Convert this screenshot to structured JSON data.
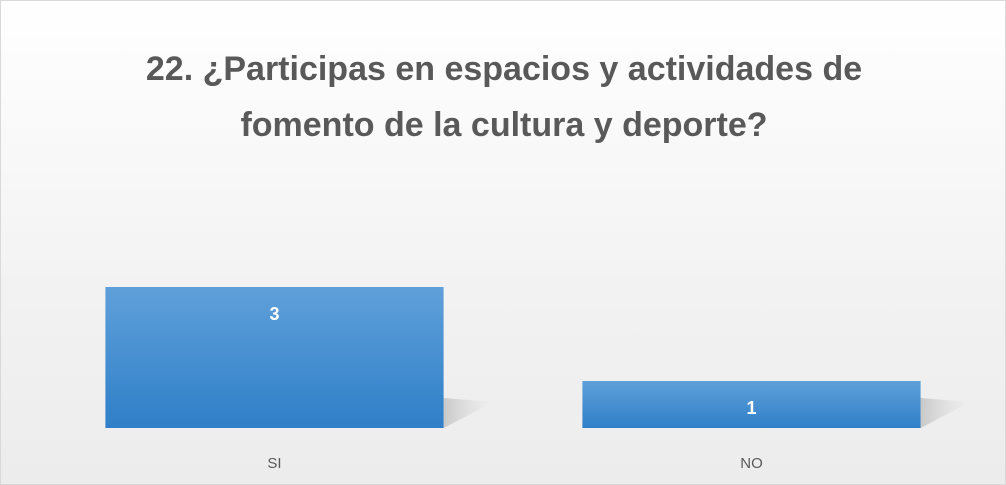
{
  "chart_data": {
    "type": "bar",
    "title": "22. ¿Participas en espacios y actividades de fomento de la cultura y deporte?",
    "categories": [
      "SI",
      "NO"
    ],
    "values": [
      3,
      1
    ],
    "color": "#4a8fd3"
  }
}
